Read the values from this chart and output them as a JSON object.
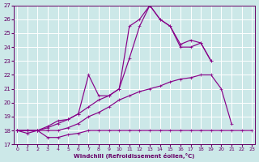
{
  "xlabel": "Windchill (Refroidissement éolien,°C)",
  "bg_color": "#cce8e8",
  "grid_color": "#ffffff",
  "line_color": "#880088",
  "xlim_min": -0.3,
  "xlim_max": 23.3,
  "ylim_min": 17,
  "ylim_max": 27,
  "xticks": [
    0,
    1,
    2,
    3,
    4,
    5,
    6,
    7,
    8,
    9,
    10,
    11,
    12,
    13,
    14,
    15,
    16,
    17,
    18,
    19,
    20,
    21,
    22,
    23
  ],
  "yticks": [
    17,
    18,
    19,
    20,
    21,
    22,
    23,
    24,
    25,
    26,
    27
  ],
  "s1_x": [
    0,
    1,
    2,
    3,
    4,
    5,
    6,
    7,
    8,
    9,
    10,
    11,
    12,
    13,
    14,
    15,
    16,
    17,
    18,
    19,
    20,
    21,
    22,
    23
  ],
  "s1_y": [
    18.0,
    17.8,
    18.0,
    17.5,
    17.5,
    17.7,
    17.8,
    18.0,
    18.0,
    18.0,
    18.0,
    18.0,
    18.0,
    18.0,
    18.0,
    18.0,
    18.0,
    18.0,
    18.0,
    18.0,
    18.0,
    18.0,
    18.0,
    18.0
  ],
  "s2_x": [
    0,
    1,
    2,
    3,
    4,
    5,
    6,
    7,
    8,
    9,
    10,
    11,
    12,
    13,
    14,
    15,
    16,
    17,
    18,
    19,
    20,
    21,
    22,
    23
  ],
  "s2_y": [
    18.0,
    18.0,
    18.0,
    18.0,
    18.0,
    18.2,
    18.5,
    19.0,
    19.3,
    19.7,
    20.2,
    20.5,
    20.8,
    21.0,
    21.2,
    21.5,
    21.7,
    21.8,
    22.0,
    22.0,
    21.0,
    18.5,
    null,
    null
  ],
  "s3_x": [
    0,
    1,
    2,
    3,
    4,
    5,
    6,
    7,
    8,
    9,
    10,
    11,
    12,
    13,
    14,
    15,
    16,
    17,
    18,
    19,
    20,
    21,
    22,
    23
  ],
  "s3_y": [
    18.0,
    18.0,
    18.0,
    18.3,
    18.7,
    18.8,
    19.2,
    19.7,
    20.2,
    20.5,
    21.0,
    23.2,
    25.5,
    27.0,
    26.0,
    25.5,
    24.2,
    24.5,
    24.3,
    23.0,
    null,
    null,
    null,
    null
  ],
  "s4_x": [
    0,
    1,
    2,
    3,
    4,
    5,
    6,
    7,
    8,
    9,
    10,
    11,
    12,
    13,
    14,
    15,
    16,
    17,
    18,
    19,
    20,
    21,
    22,
    23
  ],
  "s4_y": [
    18.0,
    18.0,
    18.0,
    18.2,
    18.5,
    18.8,
    19.2,
    22.0,
    20.5,
    20.5,
    21.0,
    25.5,
    26.0,
    27.0,
    26.0,
    25.5,
    24.0,
    24.0,
    24.3,
    23.0,
    null,
    null,
    null,
    null
  ]
}
